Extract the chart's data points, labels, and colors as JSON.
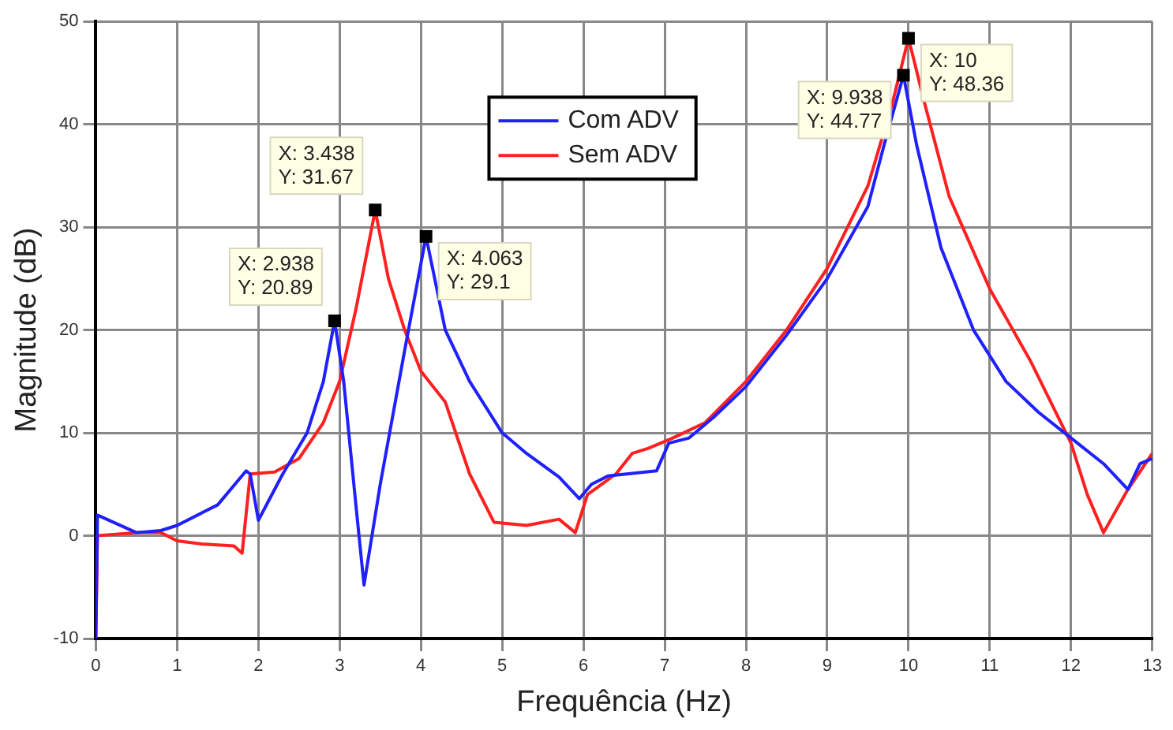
{
  "chart_data": {
    "type": "line",
    "xlabel": "Frequência (Hz)",
    "ylabel": "Magnitude (dB)",
    "xlim": [
      0,
      13
    ],
    "xticks": [
      0,
      1,
      2,
      3,
      4,
      5,
      6,
      7,
      8,
      9,
      10,
      11,
      12,
      13
    ],
    "ylim": [
      -10,
      50
    ],
    "yticks": [
      -10,
      0,
      10,
      20,
      30,
      40,
      50
    ],
    "grid": true,
    "legend": "top",
    "marker": "none",
    "line_style": "solid",
    "series": [
      {
        "name": "Com ADV",
        "color": "#2020ff",
        "x": [
          0,
          0.02,
          0.5,
          0.8,
          1.0,
          1.3,
          1.5,
          1.85,
          1.9,
          2.0,
          2.3,
          2.6,
          2.8,
          2.938,
          3.05,
          3.2,
          3.3,
          3.5,
          3.8,
          4.063,
          4.3,
          4.6,
          5.0,
          5.3,
          5.7,
          5.95,
          6.1,
          6.3,
          6.9,
          7.05,
          7.3,
          7.6,
          8.0,
          8.5,
          9.0,
          9.5,
          9.7,
          9.938,
          10.1,
          10.4,
          10.8,
          11.2,
          11.6,
          12.0,
          12.4,
          12.7,
          12.85,
          13
        ],
        "values": [
          -10,
          2,
          0.3,
          0.5,
          1,
          2.2,
          3,
          6.3,
          6,
          1.5,
          6,
          10,
          15,
          20.89,
          15,
          3,
          -4.8,
          5,
          18,
          29.1,
          20,
          15,
          10,
          8,
          5.7,
          3.6,
          5,
          5.8,
          6.3,
          9,
          9.5,
          11.5,
          14.5,
          19.5,
          25,
          32,
          38,
          44.77,
          38,
          28,
          20,
          15,
          12,
          9.5,
          7,
          4.5,
          7,
          7.5
        ]
      },
      {
        "name": "Sem ADV",
        "color": "#ff2020",
        "x": [
          0,
          0.02,
          0.5,
          0.8,
          1.0,
          1.3,
          1.7,
          1.8,
          1.9,
          2.2,
          2.5,
          2.8,
          3.0,
          3.2,
          3.438,
          3.6,
          3.8,
          4.0,
          4.3,
          4.6,
          4.9,
          5.3,
          5.7,
          5.9,
          6.05,
          6.4,
          6.6,
          6.8,
          7.1,
          7.5,
          8.0,
          8.5,
          9.0,
          9.5,
          9.8,
          10.0,
          10.2,
          10.5,
          11.0,
          11.5,
          12.0,
          12.2,
          12.4,
          12.7,
          13
        ],
        "values": [
          -10,
          0,
          0.3,
          0.3,
          -0.5,
          -0.8,
          -1,
          -1.7,
          6,
          6.2,
          7.5,
          11,
          15,
          22,
          31.67,
          25,
          20,
          16,
          13,
          6,
          1.3,
          1,
          1.6,
          0.3,
          4,
          6,
          8,
          8.5,
          9.5,
          11,
          15,
          20,
          26,
          34,
          42,
          48.36,
          42,
          33,
          24,
          17,
          9,
          4,
          0.3,
          4.5,
          8
        ]
      }
    ],
    "annotations": [
      {
        "text": "X: 2.938\nY: 20.89",
        "x": 2.938,
        "y": 20.89
      },
      {
        "text": "X: 3.438\nY: 31.67",
        "x": 3.438,
        "y": 31.67
      },
      {
        "text": "X: 4.063\nY: 29.1",
        "x": 4.063,
        "y": 29.1
      },
      {
        "text": "X: 9.938\nY: 44.77",
        "x": 9.938,
        "y": 44.77
      },
      {
        "text": "X: 10\nY: 48.36",
        "x": 10,
        "y": 48.36
      }
    ]
  }
}
